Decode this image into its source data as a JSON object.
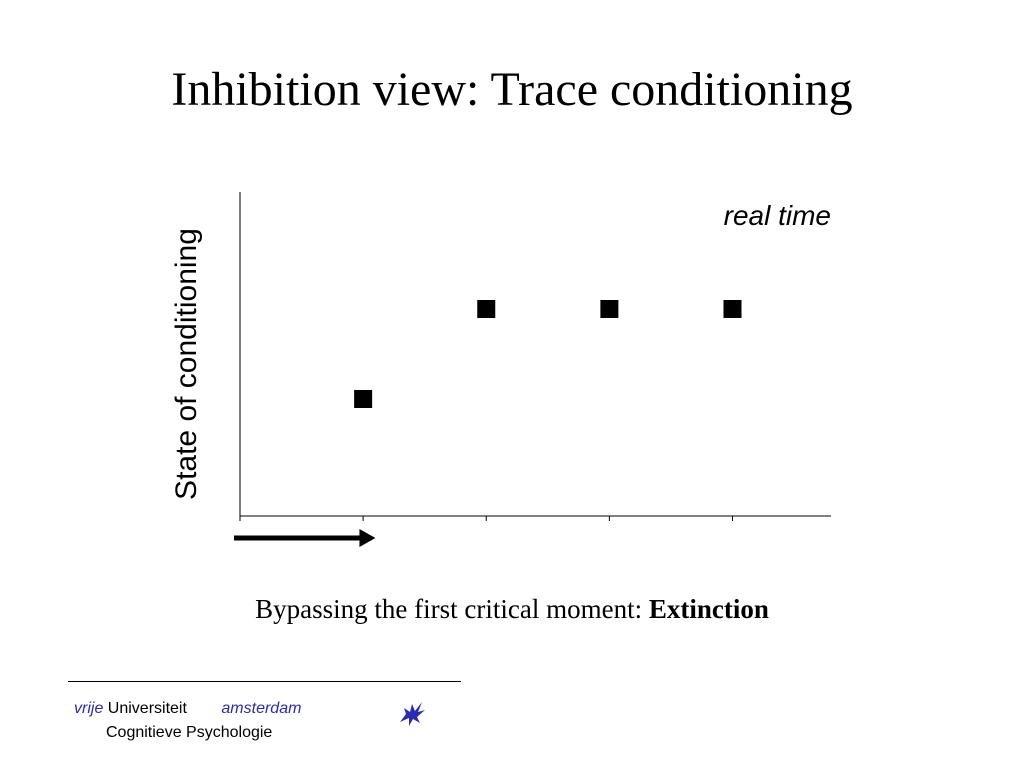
{
  "slide": {
    "title": "Inhibition view: Trace conditioning",
    "caption_prefix": "Bypassing the first critical moment: ",
    "caption_bold": "Extinction"
  },
  "chart_data": {
    "type": "scatter",
    "title": "",
    "ylabel": "State of conditioning",
    "xlabel": "",
    "annotation": "real time",
    "x": [
      1,
      2,
      3,
      4
    ],
    "y": [
      1,
      2,
      2,
      2
    ],
    "xlim": [
      0,
      4.8
    ],
    "ylim": [
      -0.3,
      3.3
    ],
    "xticks": [
      0,
      1,
      2,
      3,
      4
    ],
    "grid": false,
    "legend": "none",
    "marker": "square",
    "marker_color": "#000000",
    "arrow_from_x": 0,
    "arrow_to_x": 1.1
  },
  "footer": {
    "vrije": "vrije",
    "universiteit": "Universiteit",
    "amsterdam": "amsterdam",
    "department": "Cognitieve Psychologie",
    "logo_icon": "griffin-logo-icon",
    "accent_color": "#2b2bb0"
  }
}
